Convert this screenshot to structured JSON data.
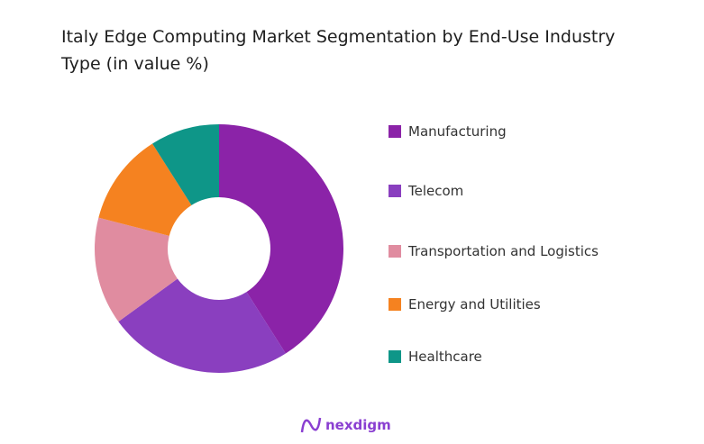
{
  "chart_data": {
    "type": "pie",
    "donut": true,
    "title": "Italy Edge Computing Market Segmentation by End-Use Industry Type (in value %)",
    "categories": [
      "Manufacturing",
      "Telecom",
      "Transportation and Logistics",
      "Energy and Utilities",
      "Healthcare"
    ],
    "values": [
      41,
      24,
      14,
      12,
      9
    ],
    "colors": [
      "#8b23a8",
      "#8a3fbf",
      "#e08ca0",
      "#f58220",
      "#0e9688"
    ],
    "legend_position": "right"
  },
  "branding": {
    "logo_text": "nexdigm"
  }
}
